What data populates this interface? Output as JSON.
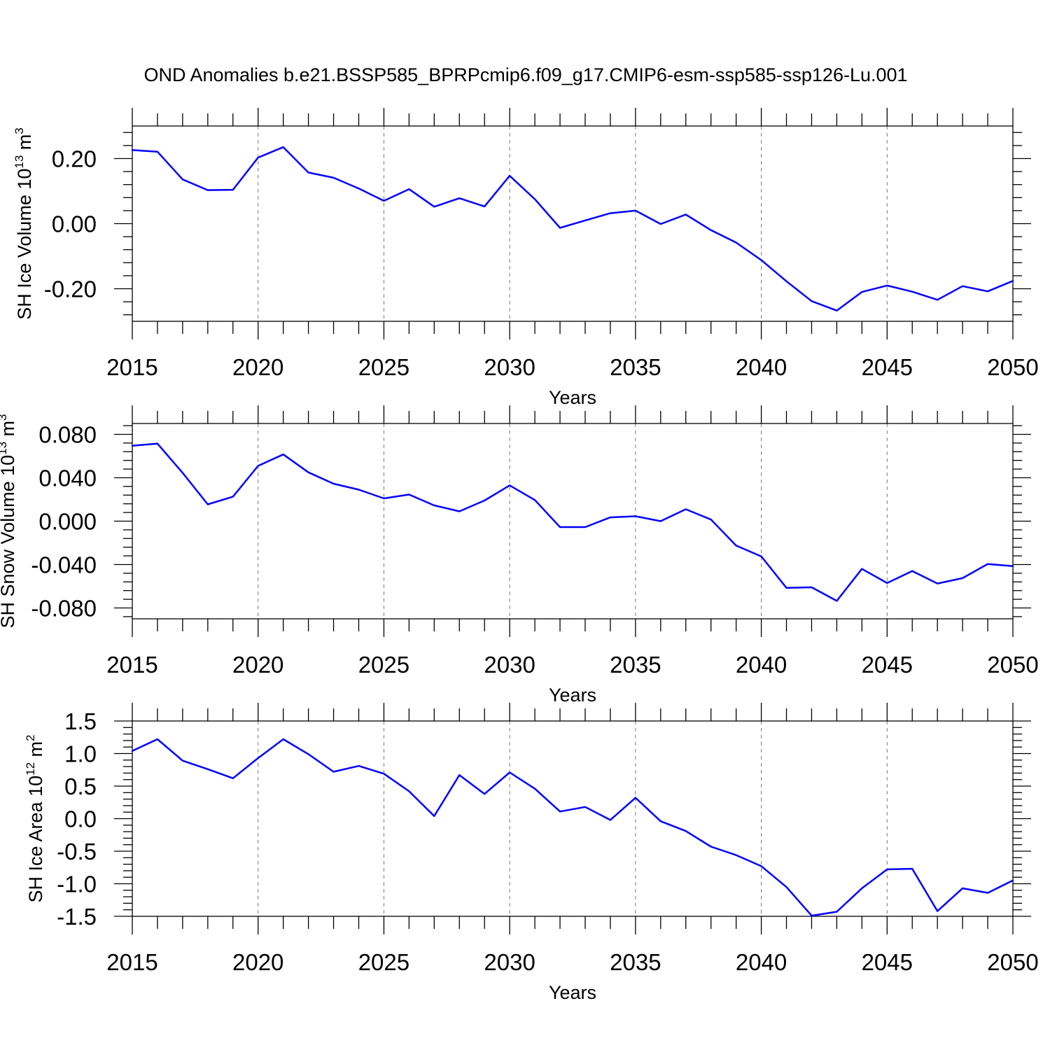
{
  "page": {
    "title": "OND Anomalies b.e21.BSSP585_BPRPcmip6.f09_g17.CMIP6-esm-ssp585-ssp126-Lu.001"
  },
  "colors": {
    "line": "#0000ff",
    "axis": "#000000",
    "grid": "#777777"
  },
  "chart_data": [
    {
      "type": "line",
      "xlabel": "Years",
      "ylabel": {
        "text": "SH Ice Volume 10",
        "exponent": "13",
        "unit": " m",
        "unit_exponent": "3"
      },
      "xlim": [
        2015,
        2050
      ],
      "ylim": [
        -0.3,
        0.3
      ],
      "xticks": [
        2015,
        2020,
        2025,
        2030,
        2035,
        2040,
        2045,
        2050
      ],
      "xtick_labels": [
        "2015",
        "2020",
        "2025",
        "2030",
        "2035",
        "2040",
        "2045",
        "2050"
      ],
      "yticks": [
        -0.2,
        0.0,
        0.2
      ],
      "ytick_labels": [
        "-0.20",
        "0.00",
        "0.20"
      ],
      "grid": "vertical dashed at major x ticks",
      "series": [
        {
          "x": [
            2015,
            2016,
            2017,
            2018,
            2019,
            2020,
            2021,
            2022,
            2023,
            2024,
            2025,
            2026,
            2027,
            2028,
            2029,
            2030,
            2031,
            2032,
            2033,
            2034,
            2035,
            2036,
            2037,
            2038,
            2039,
            2040,
            2041,
            2042,
            2043,
            2044,
            2045,
            2046,
            2047,
            2048,
            2049,
            2050
          ],
          "values": [
            0.226,
            0.221,
            0.136,
            0.103,
            0.104,
            0.203,
            0.235,
            0.157,
            0.141,
            0.108,
            0.07,
            0.106,
            0.052,
            0.078,
            0.053,
            0.147,
            0.075,
            -0.013,
            0.01,
            0.032,
            0.04,
            -0.001,
            0.028,
            -0.02,
            -0.058,
            -0.112,
            -0.177,
            -0.238,
            -0.267,
            -0.21,
            -0.19,
            -0.209,
            -0.234,
            -0.192,
            -0.208,
            -0.176
          ]
        }
      ]
    },
    {
      "type": "line",
      "xlabel": "Years",
      "ylabel": {
        "text": "SH Snow Volume 10",
        "exponent": "13",
        "unit": " m",
        "unit_exponent": "3"
      },
      "xlim": [
        2015,
        2050
      ],
      "ylim": [
        -0.09,
        0.09
      ],
      "xticks": [
        2015,
        2020,
        2025,
        2030,
        2035,
        2040,
        2045,
        2050
      ],
      "xtick_labels": [
        "2015",
        "2020",
        "2025",
        "2030",
        "2035",
        "2040",
        "2045",
        "2050"
      ],
      "yticks": [
        -0.08,
        -0.04,
        0.0,
        0.04,
        0.08
      ],
      "ytick_labels": [
        "-0.080",
        "-0.040",
        "0.000",
        "0.040",
        "0.080"
      ],
      "grid": "vertical dashed at major x ticks",
      "series": [
        {
          "x": [
            2015,
            2016,
            2017,
            2018,
            2019,
            2020,
            2021,
            2022,
            2023,
            2024,
            2025,
            2026,
            2027,
            2028,
            2029,
            2030,
            2031,
            2032,
            2033,
            2034,
            2035,
            2036,
            2037,
            2038,
            2039,
            2040,
            2041,
            2042,
            2043,
            2044,
            2045,
            2046,
            2047,
            2048,
            2049,
            2050
          ],
          "values": [
            0.0695,
            0.0715,
            0.0445,
            0.0155,
            0.0225,
            0.051,
            0.0615,
            0.045,
            0.0345,
            0.029,
            0.021,
            0.0245,
            0.0145,
            0.009,
            0.019,
            0.033,
            0.0195,
            -0.0055,
            -0.0055,
            0.0035,
            0.0045,
            0.0,
            0.011,
            0.0015,
            -0.0225,
            -0.0325,
            -0.0615,
            -0.061,
            -0.0735,
            -0.044,
            -0.057,
            -0.046,
            -0.0575,
            -0.0525,
            -0.0395,
            -0.0415
          ]
        }
      ]
    },
    {
      "type": "line",
      "xlabel": "Years",
      "ylabel": {
        "text": "SH Ice Area 10",
        "exponent": "12",
        "unit": " m",
        "unit_exponent": "2"
      },
      "xlim": [
        2015,
        2050
      ],
      "ylim": [
        -1.5,
        1.5
      ],
      "xticks": [
        2015,
        2020,
        2025,
        2030,
        2035,
        2040,
        2045,
        2050
      ],
      "xtick_labels": [
        "2015",
        "2020",
        "2025",
        "2030",
        "2035",
        "2040",
        "2045",
        "2050"
      ],
      "yticks": [
        -1.5,
        -1.0,
        -0.5,
        0.0,
        0.5,
        1.0,
        1.5
      ],
      "ytick_labels": [
        "-1.5",
        "-1.0",
        "-0.5",
        "0.0",
        "0.5",
        "1.0",
        "1.5"
      ],
      "grid": "vertical dashed at major x ticks",
      "series": [
        {
          "x": [
            2015,
            2016,
            2017,
            2018,
            2019,
            2020,
            2021,
            2022,
            2023,
            2024,
            2025,
            2026,
            2027,
            2028,
            2029,
            2030,
            2031,
            2032,
            2033,
            2034,
            2035,
            2036,
            2037,
            2038,
            2039,
            2040,
            2041,
            2042,
            2043,
            2044,
            2045,
            2046,
            2047,
            2048,
            2049,
            2050
          ],
          "values": [
            1.04,
            1.22,
            0.89,
            0.76,
            0.62,
            0.93,
            1.22,
            0.99,
            0.72,
            0.81,
            0.69,
            0.42,
            0.04,
            0.67,
            0.38,
            0.71,
            0.46,
            0.11,
            0.18,
            -0.02,
            0.32,
            -0.04,
            -0.19,
            -0.43,
            -0.56,
            -0.73,
            -1.05,
            -1.49,
            -1.43,
            -1.07,
            -0.78,
            -0.77,
            -1.42,
            -1.07,
            -1.14,
            -0.95
          ]
        }
      ]
    }
  ]
}
